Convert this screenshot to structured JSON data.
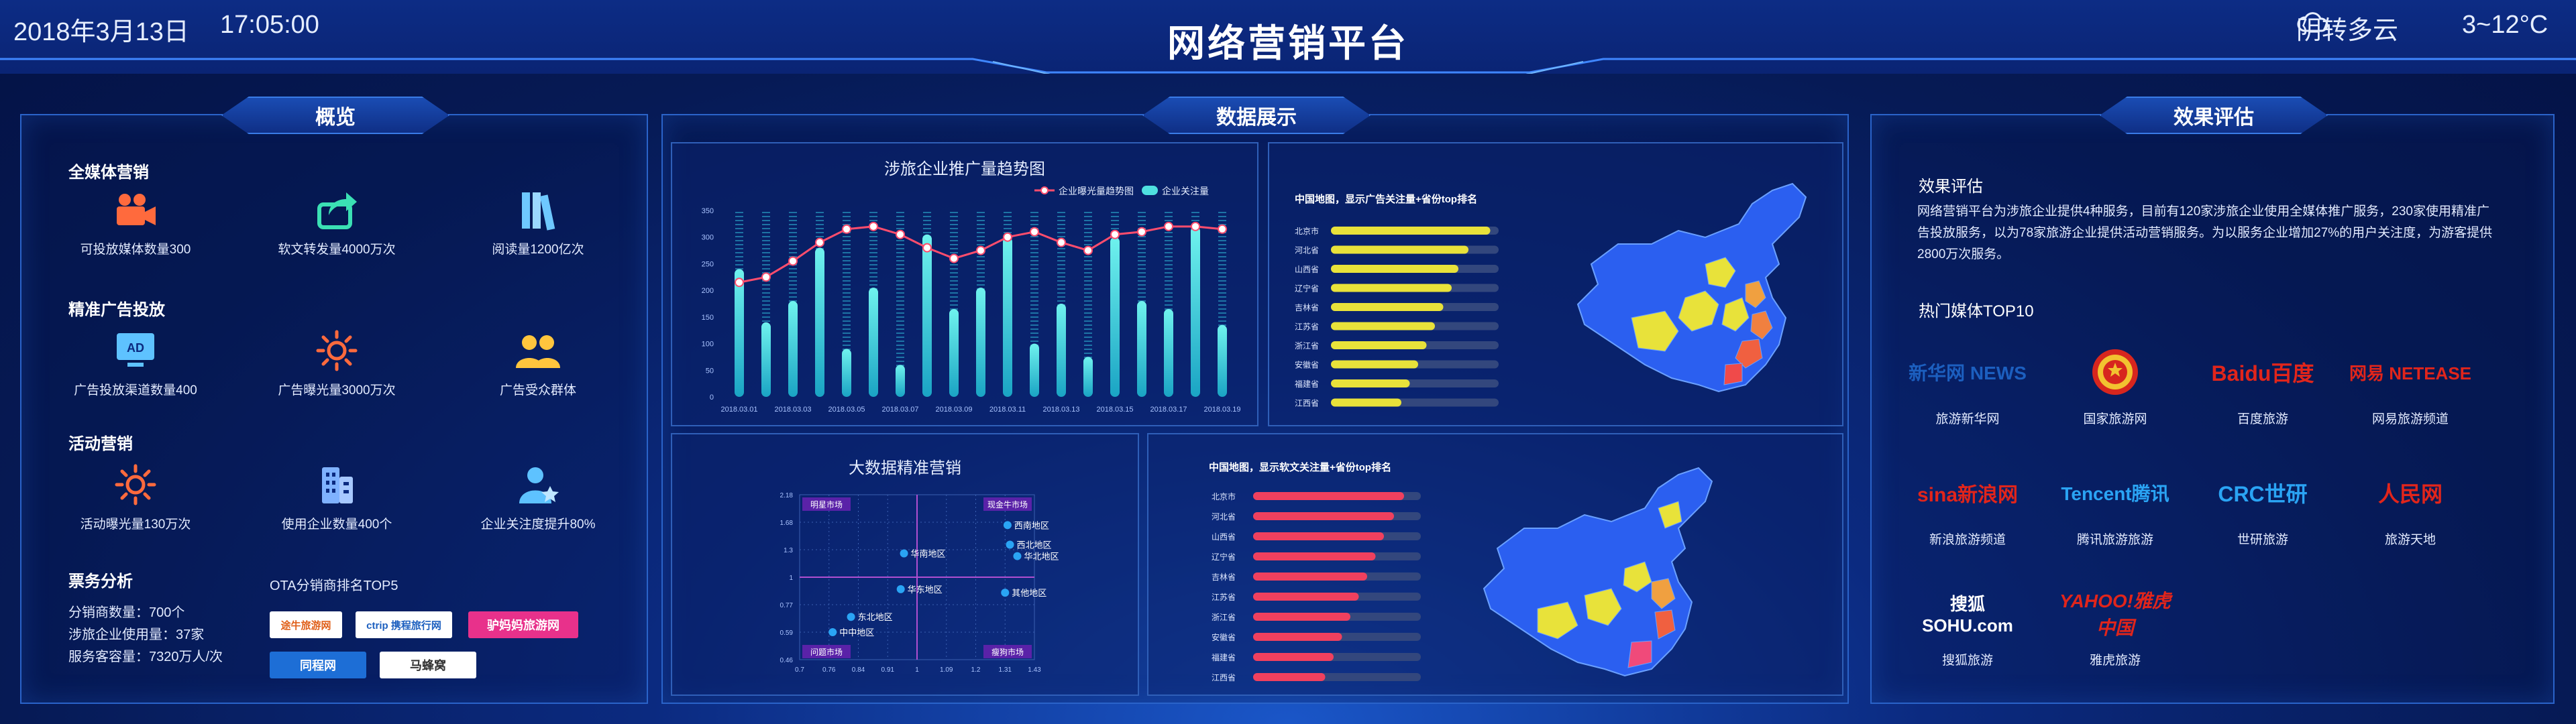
{
  "header": {
    "date": "2018年3月13日",
    "time": "17:05:00",
    "title": "网络营销平台",
    "weather": "阴转多云",
    "temp": "3~12°C"
  },
  "overview": {
    "title": "概览",
    "sec1": "全媒体营销",
    "s1": [
      {
        "label": "可投放媒体数量300",
        "icon": "video-camera-icon"
      },
      {
        "label": "软文转发量4000万次",
        "icon": "share-icon"
      },
      {
        "label": "阅读量1200亿次",
        "icon": "books-icon"
      }
    ],
    "sec2": "精准广告投放",
    "s2": [
      {
        "label": "广告投放渠道数量400",
        "icon": "ad-monitor-icon"
      },
      {
        "label": "广告曝光量3000万次",
        "icon": "sun-icon"
      },
      {
        "label": "广告受众群体",
        "icon": "users-icon"
      }
    ],
    "sec3": "活动营销",
    "s3": [
      {
        "label": "活动曝光量130万次",
        "icon": "sun-icon"
      },
      {
        "label": "使用企业数量400个",
        "icon": "building-icon"
      },
      {
        "label": "企业关注度提升80%",
        "icon": "star-user-icon"
      }
    ],
    "sec4": "票务分析",
    "ticket": [
      "分销商数量：700个",
      "涉旅企业使用量：37家",
      "服务客容量：7320万人/次"
    ],
    "ota_title": "OTA分销商排名TOP5",
    "ota": [
      "途牛旅游网",
      "ctrip 携程旅行网",
      "驴妈妈旅游网",
      "同程网",
      "马蜂窝"
    ]
  },
  "display": {
    "title": "数据展示",
    "trend": {
      "title": "涉旅企业推广量趋势图",
      "legend1": "企业曝光量趋势图",
      "legend2": "企业关注量"
    },
    "map1": {
      "title": "中国地图，显示广告关注量+省份top排名",
      "provinces": [
        "北京市",
        "河北省",
        "山西省",
        "辽宁省",
        "吉林省",
        "江苏省",
        "浙江省",
        "安徽省",
        "福建省",
        "江西省"
      ],
      "values": [
        95,
        82,
        76,
        72,
        67,
        62,
        57,
        52,
        47,
        42
      ]
    },
    "scatter": {
      "title": "大数据精准营销",
      "q": [
        "明星市场",
        "现金牛市场",
        "问题市场",
        "瘦狗市场"
      ]
    },
    "map2": {
      "title": "中国地图，显示软文关注量+省份top排名",
      "provinces": [
        "北京市",
        "河北省",
        "山西省",
        "辽宁省",
        "吉林省",
        "江苏省",
        "浙江省",
        "安徽省",
        "福建省",
        "江西省"
      ],
      "values": [
        90,
        84,
        78,
        73,
        68,
        63,
        58,
        53,
        48,
        43
      ]
    }
  },
  "chart_data": [
    {
      "type": "bar",
      "title": "涉旅企业推广量趋势图",
      "x": [
        "2018.03.01",
        "2018.03.02",
        "2018.03.03",
        "2018.03.04",
        "2018.03.05",
        "2018.03.06",
        "2018.03.07",
        "2018.03.08",
        "2018.03.09",
        "2018.03.10",
        "2018.03.11",
        "2018.03.12",
        "2018.03.13",
        "2018.03.14",
        "2018.03.15",
        "2018.03.16",
        "2018.03.17",
        "2018.03.18",
        "2018.03.19"
      ],
      "xticks": [
        "2018.03.01",
        "2018.03.03",
        "2018.03.05",
        "2018.03.07",
        "2018.03.09",
        "2018.03.11",
        "2018.03.13",
        "2018.03.15",
        "2018.03.17",
        "2018.03.19"
      ],
      "yticks": [
        0,
        50,
        100,
        150,
        200,
        250,
        300,
        350
      ],
      "ylim": [
        0,
        350
      ],
      "series": [
        {
          "name": "企业曝光量趋势图",
          "type": "line",
          "values": [
            215,
            225,
            255,
            290,
            315,
            320,
            305,
            280,
            260,
            275,
            300,
            310,
            290,
            275,
            305,
            310,
            320,
            320,
            315
          ]
        },
        {
          "name": "企业关注量",
          "type": "bar",
          "values": [
            240,
            140,
            180,
            280,
            90,
            205,
            60,
            305,
            165,
            205,
            300,
            100,
            175,
            75,
            300,
            180,
            165,
            320,
            135
          ]
        }
      ]
    },
    {
      "type": "scatter",
      "title": "大数据精准营销",
      "xticks": [
        "0.7",
        "0.76",
        "0.84",
        "0.91",
        "1",
        "1.09",
        "1.2",
        "1.31",
        "1.43"
      ],
      "yticks": [
        "2.18",
        "1.68",
        "1.3",
        "1",
        "0.77",
        "0.59",
        "0.46"
      ],
      "points": [
        {
          "label": "西南地区",
          "x": 1.32,
          "y": 1.64
        },
        {
          "label": "西北地区",
          "x": 1.33,
          "y": 1.37
        },
        {
          "label": "华南地区",
          "x": 0.96,
          "y": 1.26
        },
        {
          "label": "华北地区",
          "x": 1.36,
          "y": 1.23
        },
        {
          "label": "华东地区",
          "x": 0.95,
          "y": 0.9
        },
        {
          "label": "其他地区",
          "x": 1.31,
          "y": 0.87
        },
        {
          "label": "东北地区",
          "x": 0.82,
          "y": 0.69
        },
        {
          "label": "中中地区",
          "x": 0.77,
          "y": 0.59
        }
      ]
    }
  ],
  "effect": {
    "title": "效果评估",
    "h1": "效果评估",
    "para": "网络营销平台为涉旅企业提供4种服务，目前有120家涉旅企业使用全媒体推广服务，230家使用精准广告投放服务，以为78家旅游企业提供活动营销服务。为以服务企业增加27%的用户关注度，为游客提供2800万次服务。",
    "h2": "热门媒体TOP10",
    "media": [
      {
        "logo": "新华网 NEWS",
        "name": "旅游新华网"
      },
      {
        "logo": "国徽",
        "name": "国家旅游网"
      },
      {
        "logo": "Baidu百度",
        "name": "百度旅游"
      },
      {
        "logo": "网易 NETEASE",
        "name": "网易旅游频道"
      },
      {
        "logo": "sina新浪网",
        "name": "新浪旅游频道"
      },
      {
        "logo": "Tencent腾讯",
        "name": "腾讯旅游旅游"
      },
      {
        "logo": "CRC世研",
        "name": "世研旅游"
      },
      {
        "logo": "人民网",
        "name": "旅游天地"
      },
      {
        "logo": "搜狐 SOHU.com",
        "name": "搜狐旅游"
      },
      {
        "logo": "YAHOO!雅虎中国",
        "name": "雅虎旅游"
      }
    ]
  }
}
